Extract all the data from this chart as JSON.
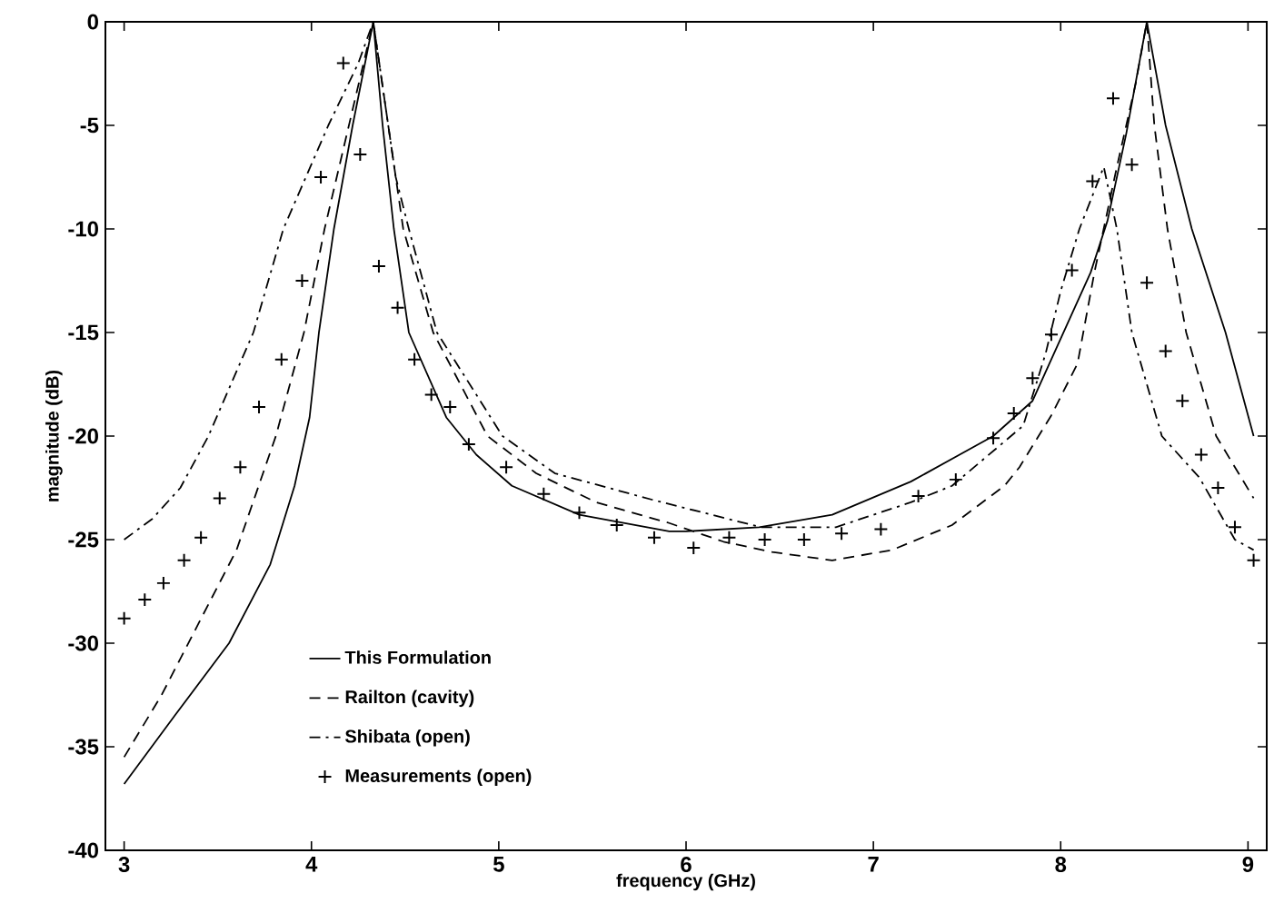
{
  "chart_data": {
    "type": "line",
    "xlabel": "frequency (GHz)",
    "ylabel": "magnitude (dB)",
    "xlim": [
      2.9,
      9.1
    ],
    "ylim": [
      -40,
      0
    ],
    "xticks": [
      3,
      4,
      5,
      6,
      7,
      8,
      9
    ],
    "yticks": [
      -40,
      -35,
      -30,
      -25,
      -20,
      -15,
      -10,
      -5,
      0
    ],
    "grid": false,
    "legend": "bottom left",
    "series": [
      {
        "name": "This Formulation",
        "line_style": "solid",
        "color": "#000000",
        "x": [
          3,
          3.27,
          3.56,
          3.78,
          3.91,
          3.99,
          4.04,
          4.12,
          4.22,
          4.33,
          4.38,
          4.44,
          4.52,
          4.72,
          4.88,
          5.07,
          5.43,
          5.91,
          6.0,
          6.39,
          6.78,
          7.2,
          7.64,
          7.85,
          8.16,
          8.25,
          8.35,
          8.46,
          8.56,
          8.7,
          8.88,
          9.03
        ],
        "values": [
          -36.8,
          -33.5,
          -30,
          -26.2,
          -22.4,
          -19.1,
          -15,
          -10,
          -5,
          0,
          -5,
          -10,
          -15,
          -19.1,
          -20.9,
          -22.4,
          -23.8,
          -24.6,
          -24.6,
          -24.4,
          -23.8,
          -22.2,
          -20,
          -18.3,
          -12.1,
          -9.6,
          -5.4,
          0,
          -5,
          -10,
          -15,
          -20
        ]
      },
      {
        "name": "Railton (cavity)",
        "line_style": "dashed",
        "color": "#000000",
        "x": [
          3,
          3.2,
          3.4,
          3.6,
          3.81,
          3.96,
          4.07,
          4.2,
          4.33,
          4.41,
          4.49,
          4.65,
          4.94,
          5.2,
          5.52,
          5.91,
          6.2,
          6.46,
          6.78,
          7.1,
          7.42,
          7.7,
          7.78,
          7.95,
          8.09,
          8.18,
          8.3,
          8.4,
          8.46,
          8.5,
          8.57,
          8.67,
          8.83,
          9.03
        ],
        "values": [
          -35.5,
          -32.5,
          -29,
          -25.5,
          -20,
          -15,
          -10,
          -5,
          0,
          -5,
          -10,
          -15,
          -20,
          -21.8,
          -23.2,
          -24.2,
          -25.1,
          -25.6,
          -26,
          -25.5,
          -24.3,
          -22.4,
          -21.5,
          -19,
          -16.5,
          -12.1,
          -7,
          -3,
          0,
          -5,
          -10,
          -15,
          -20,
          -23
        ]
      },
      {
        "name": "Shibata (open)",
        "line_style": "dashdot",
        "color": "#000000",
        "x": [
          3,
          3.15,
          3.3,
          3.45,
          3.69,
          3.85,
          4.09,
          4.25,
          4.33,
          4.45,
          4.52,
          4.67,
          5.02,
          5.3,
          5.83,
          6.4,
          6.8,
          7.2,
          7.42,
          7.8,
          7.92,
          8.0,
          8.1,
          8.23,
          8.3,
          8.38,
          8.54,
          8.74,
          8.93,
          9.03
        ],
        "values": [
          -25,
          -24,
          -22.5,
          -20,
          -15,
          -10,
          -5,
          -2,
          0,
          -7.5,
          -10,
          -15,
          -20,
          -21.8,
          -23.1,
          -24.4,
          -24.4,
          -23.2,
          -22.4,
          -19.5,
          -16,
          -13,
          -10,
          -7,
          -10,
          -15,
          -20,
          -22,
          -25,
          -25.5
        ]
      },
      {
        "name": "Measurements (open)",
        "type": "scatter",
        "marker": "cross",
        "color": "#000000",
        "x": [
          3.0,
          3.11,
          3.21,
          3.32,
          3.41,
          3.51,
          3.62,
          3.72,
          3.84,
          3.95,
          4.05,
          4.17,
          4.26,
          4.36,
          4.46,
          4.55,
          4.64,
          4.74,
          4.84,
          5.04,
          5.24,
          5.43,
          5.63,
          5.83,
          6.04,
          6.23,
          6.42,
          6.63,
          6.83,
          7.04,
          7.24,
          7.44,
          7.64,
          7.75,
          7.85,
          7.95,
          8.06,
          8.17,
          8.28,
          8.38,
          8.46,
          8.56,
          8.65,
          8.75,
          8.84,
          8.93,
          9.03
        ],
        "values": [
          -28.8,
          -27.9,
          -27.1,
          -26.0,
          -24.9,
          -23.0,
          -21.5,
          -18.6,
          -16.3,
          -12.5,
          -7.5,
          -2.0,
          -6.4,
          -11.8,
          -13.8,
          -16.3,
          -18.0,
          -18.6,
          -20.4,
          -21.5,
          -22.8,
          -23.7,
          -24.3,
          -24.9,
          -25.4,
          -24.9,
          -25.0,
          -25.0,
          -24.7,
          -24.5,
          -22.9,
          -22.1,
          -20.1,
          -18.9,
          -17.2,
          -15.1,
          -12.0,
          -7.7,
          -3.7,
          -6.9,
          -12.6,
          -15.9,
          -18.3,
          -20.9,
          -22.5,
          -24.4,
          -26.0
        ]
      }
    ]
  }
}
